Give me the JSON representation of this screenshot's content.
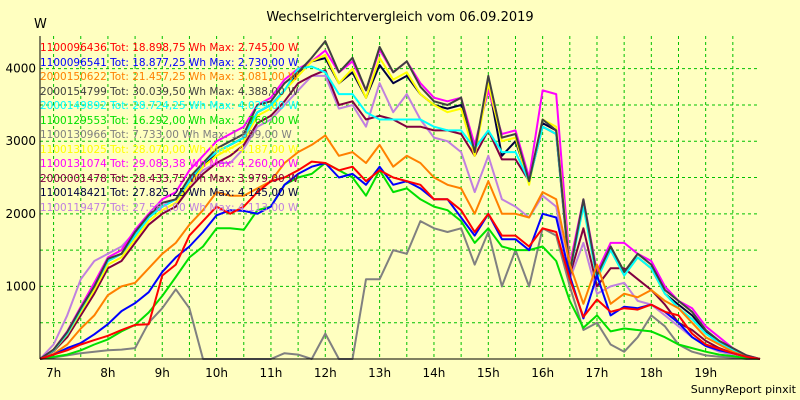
{
  "chart_data": {
    "type": "line",
    "title": "Wechselrichtervergleich vom 06.09.2019",
    "ylabel": "W",
    "xlabel": "",
    "credit": "SunnyReport pinxit",
    "grid": true,
    "xlim": [
      6.75,
      20.0
    ],
    "ylim": [
      0,
      4450
    ],
    "yticks": [
      1000,
      2000,
      3000,
      4000
    ],
    "xticks": [
      {
        "label": "7h",
        "value": 7
      },
      {
        "label": "8h",
        "value": 8
      },
      {
        "label": "9h",
        "value": 9
      },
      {
        "label": "10h",
        "value": 10
      },
      {
        "label": "11h",
        "value": 11
      },
      {
        "label": "12h",
        "value": 12
      },
      {
        "label": "13h",
        "value": 13
      },
      {
        "label": "14h",
        "value": 14
      },
      {
        "label": "15h",
        "value": 15
      },
      {
        "label": "16h",
        "value": 16
      },
      {
        "label": "17h",
        "value": 17
      },
      {
        "label": "18h",
        "value": 18
      },
      {
        "label": "19h",
        "value": 19
      }
    ],
    "x": [
      6.75,
      7.0,
      7.25,
      7.5,
      7.75,
      8.0,
      8.25,
      8.5,
      8.75,
      9.0,
      9.25,
      9.5,
      9.75,
      10.0,
      10.25,
      10.5,
      10.75,
      11.0,
      11.25,
      11.5,
      11.75,
      12.0,
      12.25,
      12.5,
      12.75,
      13.0,
      13.25,
      13.5,
      13.75,
      14.0,
      14.25,
      14.5,
      14.75,
      15.0,
      15.25,
      15.5,
      15.75,
      16.0,
      16.25,
      16.5,
      16.75,
      17.0,
      17.25,
      17.5,
      17.75,
      18.0,
      18.25,
      18.5,
      18.75,
      19.0,
      19.25,
      19.5,
      19.75,
      20.0
    ],
    "series": [
      {
        "name": "1100096436",
        "tot": "18.898,75",
        "max": "2.745,00",
        "color": "#ff0000",
        "values": [
          0,
          60,
          120,
          200,
          260,
          320,
          400,
          470,
          480,
          1150,
          1300,
          1700,
          1900,
          2100,
          2000,
          2100,
          2300,
          2450,
          2500,
          2600,
          2720,
          2700,
          2600,
          2650,
          2450,
          2600,
          2500,
          2450,
          2400,
          2200,
          2200,
          2050,
          1750,
          2000,
          1700,
          1700,
          1550,
          1800,
          1750,
          1100,
          580,
          820,
          650,
          700,
          680,
          750,
          650,
          600,
          350,
          200,
          140,
          80,
          30,
          0
        ]
      },
      {
        "name": "1100096541",
        "tot": "18.877,25",
        "max": "2.730,00",
        "color": "#0000ff",
        "values": [
          0,
          60,
          150,
          220,
          340,
          480,
          660,
          770,
          920,
          1200,
          1400,
          1550,
          1750,
          1980,
          2050,
          2040,
          2000,
          2100,
          2400,
          2550,
          2650,
          2700,
          2500,
          2550,
          2400,
          2650,
          2400,
          2450,
          2350,
          2200,
          2200,
          1950,
          1700,
          2000,
          1650,
          1650,
          1500,
          2000,
          1950,
          1150,
          560,
          1150,
          600,
          720,
          700,
          750,
          650,
          500,
          300,
          180,
          120,
          80,
          30,
          0
        ]
      },
      {
        "name": "2000150622",
        "tot": "21.457,25",
        "max": "3.081,00",
        "color": "#ff8000",
        "values": [
          0,
          70,
          200,
          420,
          600,
          880,
          1000,
          1050,
          1250,
          1450,
          1600,
          1850,
          2050,
          2300,
          2250,
          2250,
          2350,
          2450,
          2700,
          2850,
          2950,
          3080,
          2800,
          2850,
          2700,
          2950,
          2650,
          2800,
          2700,
          2500,
          2400,
          2350,
          2000,
          2450,
          2000,
          2000,
          1950,
          2300,
          2200,
          1300,
          760,
          1300,
          760,
          900,
          850,
          950,
          800,
          700,
          500,
          300,
          200,
          100,
          30,
          0
        ]
      },
      {
        "name": "2000154799",
        "tot": "30.039,50",
        "max": "4.388,00",
        "color": "#404040",
        "values": [
          0,
          130,
          370,
          700,
          1000,
          1380,
          1450,
          1750,
          1980,
          2150,
          2200,
          2500,
          2700,
          2900,
          3000,
          3100,
          3500,
          3550,
          3800,
          3950,
          4150,
          4380,
          3950,
          4150,
          3700,
          4300,
          3950,
          4100,
          3750,
          3550,
          3500,
          3600,
          2850,
          3900,
          3050,
          3100,
          2450,
          3300,
          3150,
          1200,
          2200,
          1150,
          1550,
          1200,
          1450,
          1300,
          950,
          800,
          650,
          400,
          250,
          150,
          50,
          0
        ]
      },
      {
        "name": "2000149892",
        "tot": "28.724,25",
        "max": "4.029,00",
        "color": "#00ffff",
        "values": [
          0,
          120,
          350,
          680,
          1000,
          1350,
          1450,
          1700,
          1950,
          2100,
          2200,
          2450,
          2700,
          2850,
          2950,
          3050,
          3400,
          3500,
          3700,
          4000,
          4030,
          3950,
          3650,
          3650,
          3400,
          3300,
          3300,
          3300,
          3300,
          3200,
          3150,
          3150,
          2900,
          3150,
          2850,
          2850,
          2450,
          3200,
          3100,
          1200,
          2100,
          1100,
          1500,
          1150,
          1400,
          1250,
          900,
          700,
          550,
          350,
          220,
          120,
          40,
          0
        ]
      },
      {
        "name": "1100129553",
        "tot": "16.292,00",
        "max": "2.760,00",
        "color": "#00e000",
        "values": [
          0,
          30,
          60,
          120,
          200,
          270,
          380,
          470,
          640,
          870,
          1130,
          1400,
          1550,
          1800,
          1800,
          1780,
          2050,
          2100,
          2400,
          2500,
          2550,
          2700,
          2600,
          2500,
          2250,
          2600,
          2300,
          2350,
          2200,
          2100,
          2050,
          1900,
          1600,
          1800,
          1550,
          1500,
          1500,
          1550,
          1350,
          800,
          430,
          600,
          380,
          420,
          400,
          380,
          300,
          200,
          150,
          100,
          60,
          40,
          10,
          0
        ]
      },
      {
        "name": "1100130966",
        "tot": "7.733,00",
        "max": "1.899,00",
        "color": "#808080",
        "values": [
          0,
          20,
          50,
          80,
          100,
          120,
          130,
          150,
          500,
          700,
          960,
          700,
          0,
          0,
          0,
          0,
          0,
          0,
          80,
          60,
          0,
          350,
          0,
          0,
          1100,
          1100,
          1500,
          1450,
          1900,
          1800,
          1750,
          1800,
          1300,
          1750,
          1000,
          1500,
          1000,
          1800,
          1700,
          1000,
          400,
          500,
          200,
          100,
          300,
          600,
          450,
          200,
          100,
          50,
          30,
          20,
          0,
          0
        ]
      },
      {
        "name": "1100131025",
        "tot": "28.070,00",
        "max": "4.187,00",
        "color": "#ffff00",
        "values": [
          0,
          120,
          340,
          650,
          950,
          1300,
          1400,
          1650,
          1900,
          2050,
          2150,
          2400,
          2650,
          2800,
          2900,
          3000,
          3350,
          3450,
          3700,
          3900,
          4100,
          4190,
          3800,
          4000,
          3600,
          4150,
          3850,
          3950,
          3650,
          3500,
          3400,
          3450,
          2800,
          3800,
          3000,
          3050,
          2400,
          3300,
          3200,
          1250,
          2100,
          1100,
          1500,
          1150,
          1400,
          1250,
          900,
          700,
          550,
          350,
          220,
          120,
          40,
          0
        ]
      },
      {
        "name": "1100131074",
        "tot": "29.083,38",
        "max": "4.260,00",
        "color": "#ff00ff",
        "values": [
          0,
          130,
          380,
          720,
          1050,
          1400,
          1500,
          1780,
          2000,
          2200,
          2300,
          2600,
          2800,
          3000,
          3100,
          3200,
          3500,
          3600,
          3850,
          4000,
          4100,
          4250,
          3950,
          4100,
          3700,
          4260,
          3950,
          4100,
          3800,
          3600,
          3550,
          3600,
          2950,
          3700,
          3100,
          3150,
          2500,
          3700,
          3650,
          1300,
          2200,
          1200,
          1600,
          1600,
          1450,
          1350,
          1000,
          800,
          700,
          450,
          300,
          150,
          50,
          0
        ]
      },
      {
        "name": "2000001478",
        "tot": "28.433,75",
        "max": "3.979,00",
        "color": "#800040",
        "values": [
          0,
          110,
          300,
          600,
          900,
          1250,
          1350,
          1600,
          1850,
          2000,
          2100,
          2350,
          2550,
          2700,
          2800,
          2950,
          3250,
          3350,
          3550,
          3800,
          3900,
          3979,
          3500,
          3550,
          3300,
          3350,
          3300,
          3200,
          3200,
          3150,
          3150,
          3100,
          2800,
          3150,
          2750,
          2750,
          2450,
          3200,
          3100,
          1150,
          1800,
          1000,
          1250,
          1250,
          1100,
          950,
          750,
          500,
          400,
          250,
          150,
          80,
          30,
          0
        ]
      },
      {
        "name": "1100148421",
        "tot": "27.825,25",
        "max": "4.145,00",
        "color": "#000040",
        "values": [
          0,
          120,
          350,
          680,
          1000,
          1350,
          1450,
          1700,
          1950,
          2100,
          2200,
          2450,
          2650,
          2850,
          2950,
          3050,
          3400,
          3500,
          3700,
          3950,
          4100,
          4145,
          3800,
          3950,
          3600,
          4050,
          3800,
          3900,
          3650,
          3500,
          3450,
          3500,
          2850,
          3800,
          2800,
          3000,
          2450,
          3250,
          3150,
          1200,
          2150,
          1100,
          1550,
          1200,
          1400,
          1250,
          900,
          750,
          600,
          380,
          240,
          130,
          40,
          0
        ]
      },
      {
        "name": "1100119477",
        "tot": "27.585,00",
        "max": "4.113,00",
        "color": "#c080e0",
        "values": [
          0,
          200,
          600,
          1100,
          1350,
          1450,
          1550,
          1750,
          1950,
          2150,
          2200,
          2400,
          2600,
          2700,
          2700,
          2900,
          3200,
          3300,
          3500,
          3700,
          3900,
          3900,
          3450,
          3500,
          3200,
          3800,
          3400,
          3650,
          3300,
          3050,
          3000,
          2850,
          2300,
          2800,
          2200,
          2100,
          1950,
          2250,
          2100,
          1100,
          1600,
          900,
          1000,
          1050,
          800,
          750,
          600,
          450,
          300,
          180,
          100,
          60,
          20,
          0
        ]
      }
    ]
  },
  "legend_format": {
    "tot_prefix": "Tot:",
    "unit_wh": "Wh",
    "max_prefix": "Max:",
    "unit_w": "W"
  }
}
